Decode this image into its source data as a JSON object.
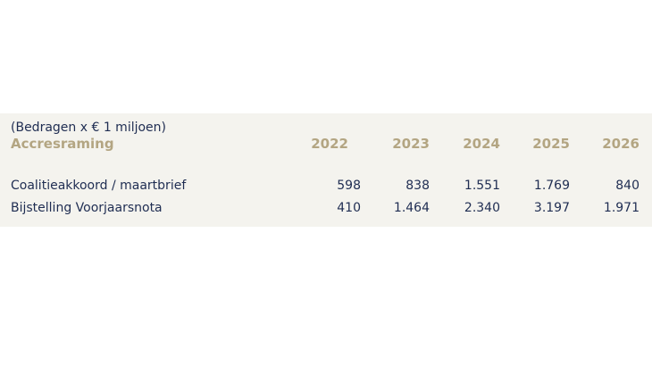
{
  "table": {
    "caption": "(Bedragen x € 1 miljoen)",
    "title": "Accresraming",
    "years": [
      "2022",
      "2023",
      "2024",
      "2025",
      "2026"
    ],
    "rows": [
      {
        "label": "Coalitieakkoord / maartbrief",
        "values": [
          "598",
          "838",
          "1.551",
          "1.769",
          "840"
        ]
      },
      {
        "label": "Bijstelling Voorjaarsnota",
        "values": [
          "410",
          "1.464",
          "2.340",
          "3.197",
          "1.971"
        ]
      }
    ]
  }
}
